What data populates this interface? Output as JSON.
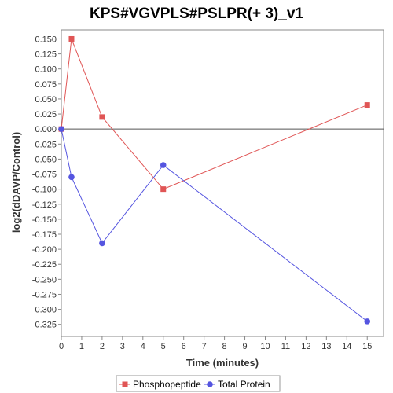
{
  "chart_data": {
    "type": "line",
    "title": "KPS#VGVPLS#PSLPR(+ 3)_v1",
    "xlabel": "Time (minutes)",
    "ylabel": "log2(dDAVP/Control)",
    "xlim": [
      0,
      15.8
    ],
    "ylim": [
      -0.345,
      0.165
    ],
    "xticks": [
      0,
      1,
      2,
      3,
      4,
      5,
      6,
      7,
      8,
      9,
      10,
      11,
      12,
      13,
      14,
      15
    ],
    "yticks": [
      0.15,
      0.125,
      0.1,
      0.075,
      0.05,
      0.025,
      0.0,
      -0.025,
      -0.05,
      -0.075,
      -0.1,
      -0.125,
      -0.15,
      -0.175,
      -0.2,
      -0.225,
      -0.25,
      -0.275,
      -0.3,
      -0.325
    ],
    "yticklabels": [
      "0.150",
      "0.125",
      "0.100",
      "0.075",
      "0.050",
      "0.025",
      "0.000",
      "-0.025",
      "-0.050",
      "-0.075",
      "-0.100",
      "-0.125",
      "-0.150",
      "-0.175",
      "-0.200",
      "-0.225",
      "-0.250",
      "-0.275",
      "-0.300",
      "-0.325"
    ],
    "zero_line": true,
    "grid": false,
    "legend_position": "bottom",
    "series": [
      {
        "name": "Phosphopeptide",
        "color": "#e05555",
        "marker": "square",
        "x": [
          0,
          0.5,
          2,
          5,
          15
        ],
        "y": [
          0.0,
          0.15,
          0.02,
          -0.1,
          0.04
        ]
      },
      {
        "name": "Total Protein",
        "color": "#5555e0",
        "marker": "circle",
        "x": [
          0,
          0.5,
          2,
          5,
          15
        ],
        "y": [
          0.0,
          -0.08,
          -0.19,
          -0.06,
          -0.32
        ]
      }
    ]
  }
}
